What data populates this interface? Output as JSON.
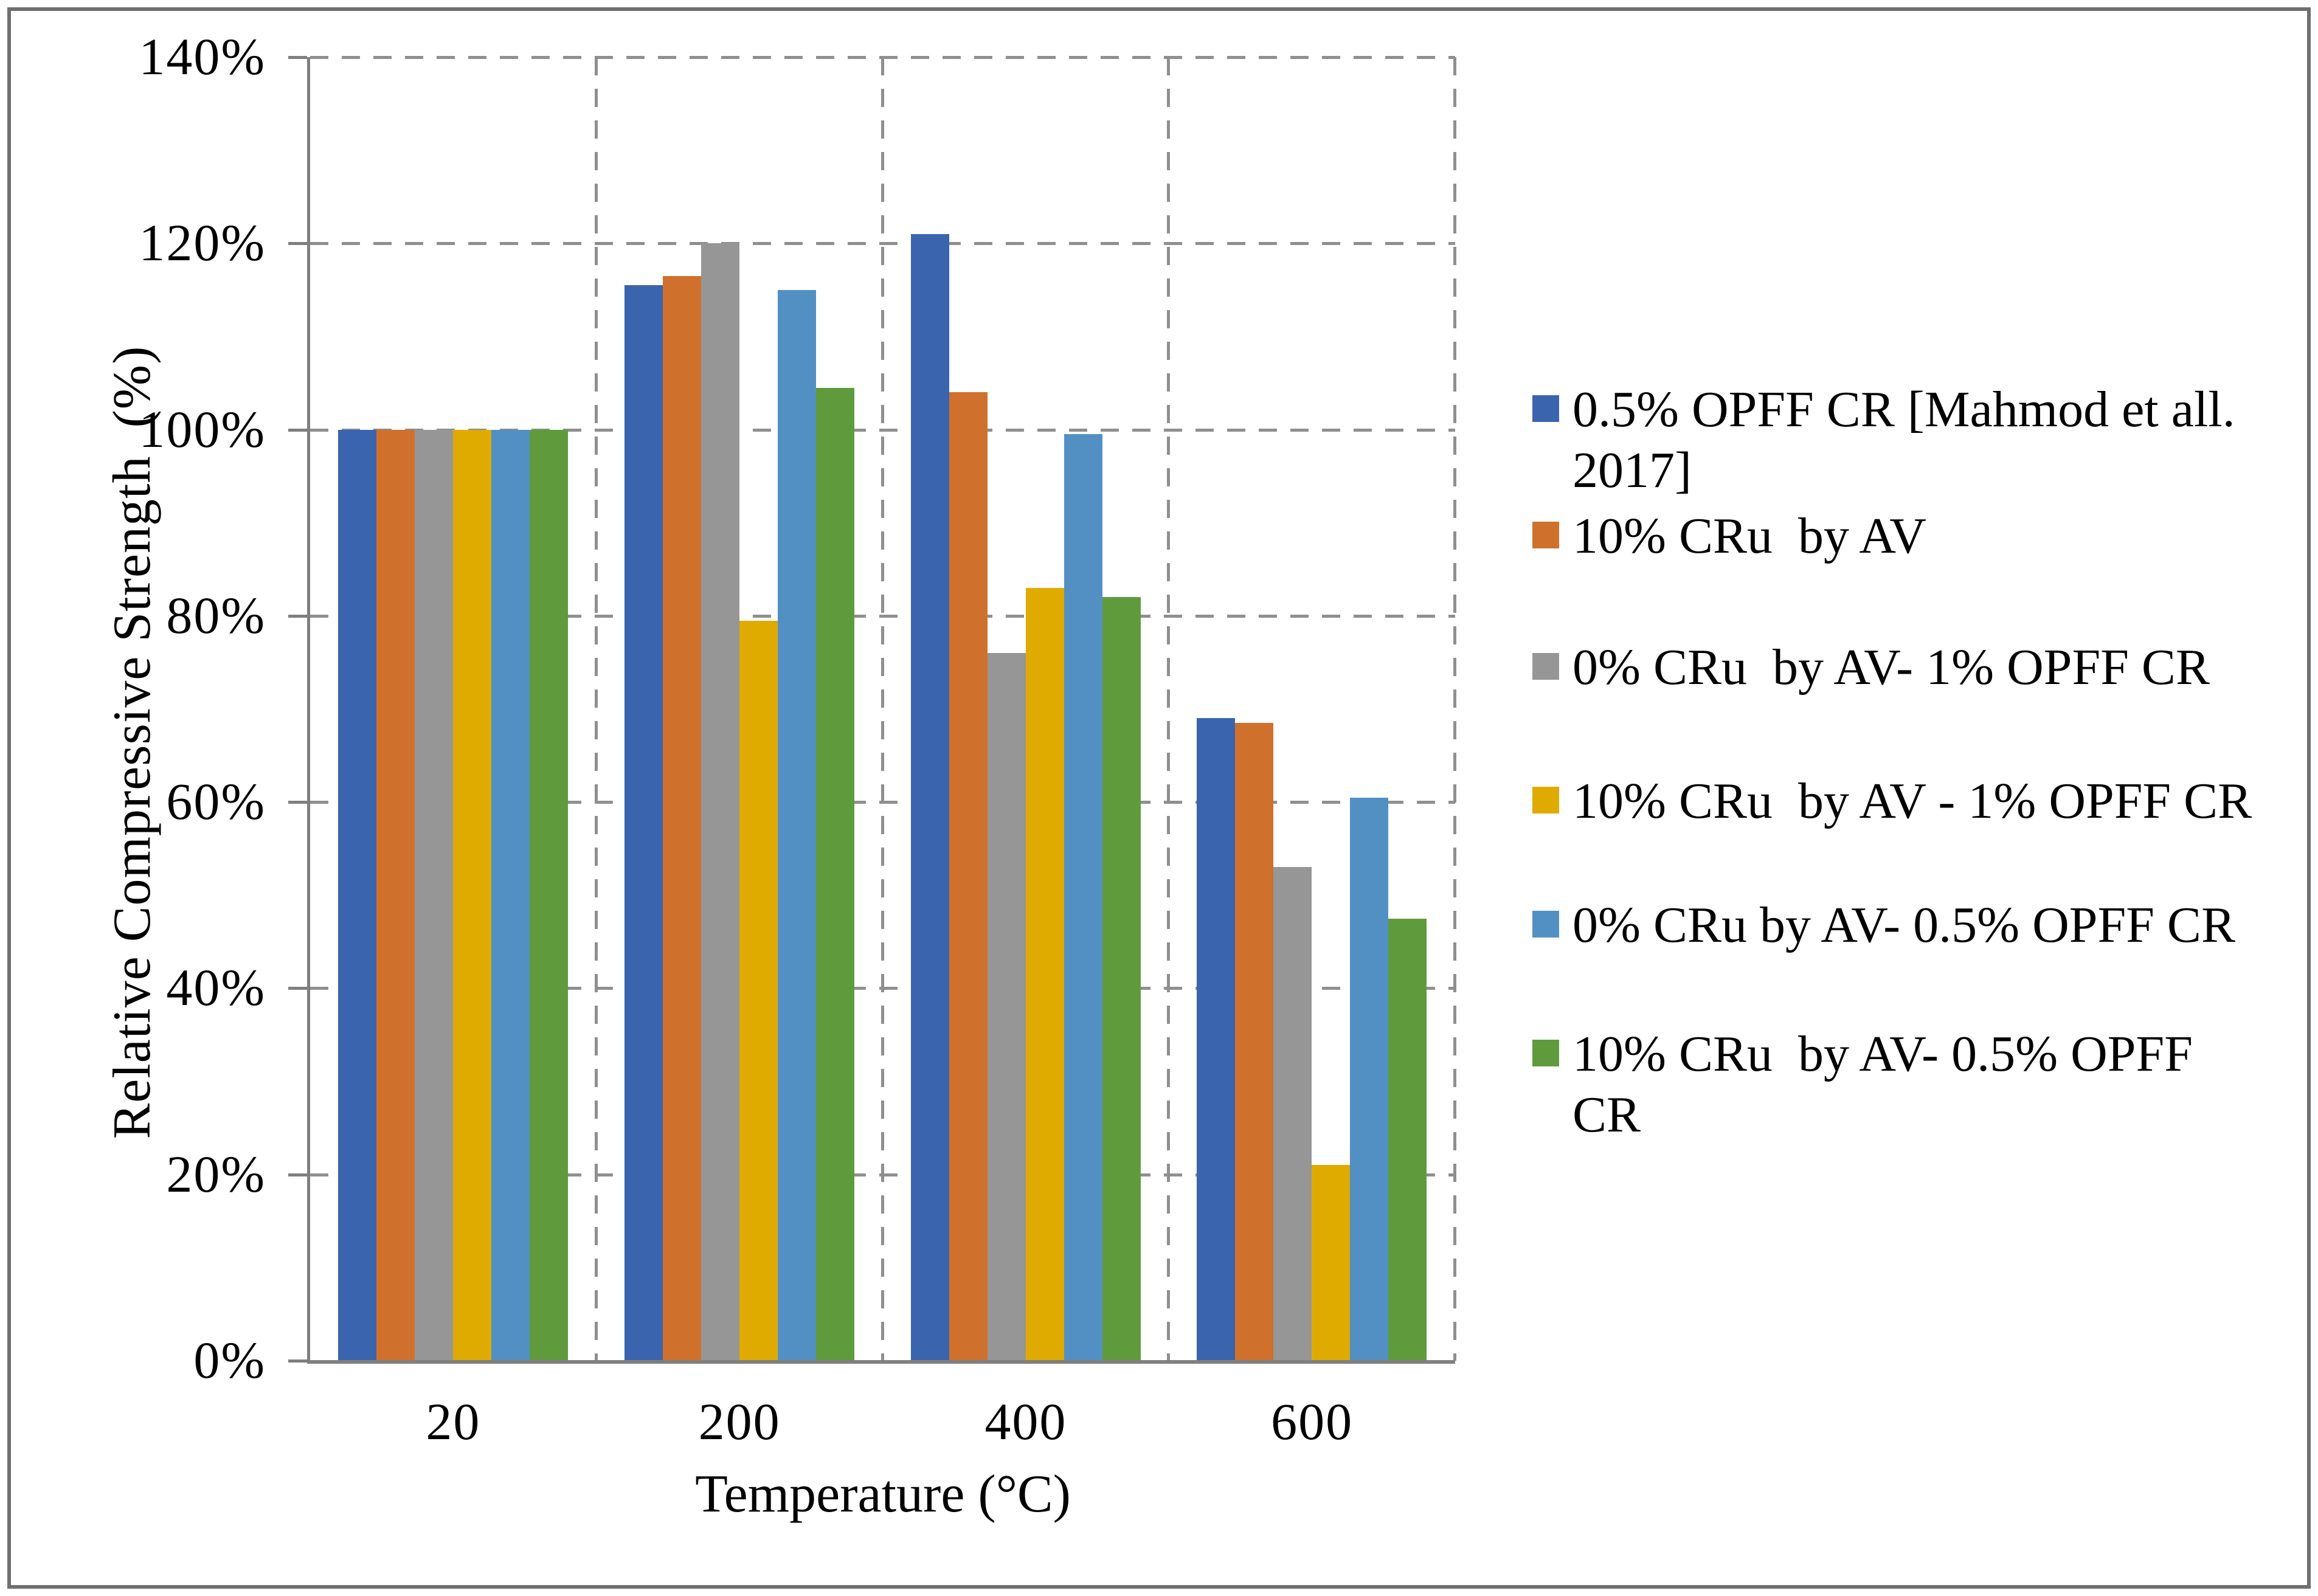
{
  "chart_data": {
    "type": "bar",
    "title": "",
    "xlabel": "Temperature (°C)",
    "ylabel": "Relative Compressive Strength  (%)",
    "categories": [
      "20",
      "200",
      "400",
      "600"
    ],
    "y_ticks": [
      "0%",
      "20%",
      "40%",
      "60%",
      "80%",
      "100%",
      "120%",
      "140%"
    ],
    "ylim": [
      0,
      140
    ],
    "grid": "dashed",
    "legend_position": "right",
    "series": [
      {
        "label": "0.5% OPFF CR [Mahmod et all.\n2017]",
        "color": "#3b64ae",
        "values": [
          100,
          115.5,
          121,
          69
        ]
      },
      {
        "label": "10% CRu  by AV",
        "color": "#d0702d",
        "values": [
          100,
          116.5,
          104,
          68.5
        ]
      },
      {
        "label": "0% CRu  by AV- 1% OPFF CR",
        "color": "#969696",
        "values": [
          100,
          120,
          76,
          53
        ]
      },
      {
        "label": "10% CRu  by AV - 1% OPFF CR",
        "color": "#dfab00",
        "values": [
          100,
          79.5,
          83,
          21
        ]
      },
      {
        "label": "0% CRu by AV- 0.5% OPFF CR",
        "color": "#5290c4",
        "values": [
          100,
          115,
          99.5,
          60.5
        ]
      },
      {
        "label": "10% CRu  by AV- 0.5% OPFF\nCR",
        "color": "#5f9b3d",
        "values": [
          100,
          104.5,
          82,
          47.5
        ]
      }
    ]
  }
}
